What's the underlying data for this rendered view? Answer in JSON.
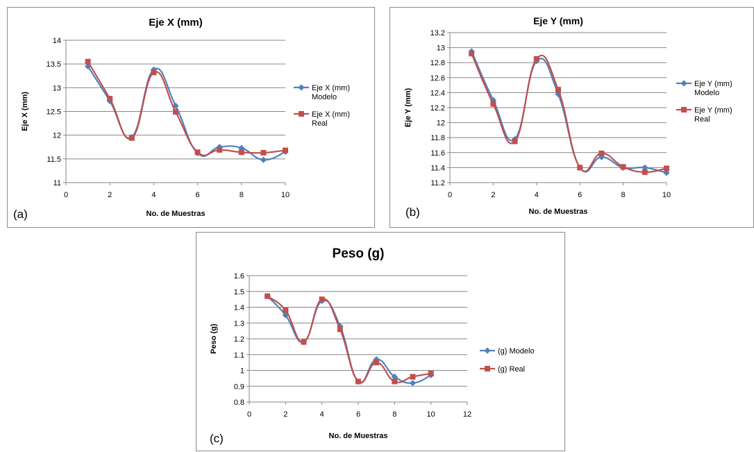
{
  "colors": {
    "modelo": "#4f81bd",
    "real": "#c0504d",
    "grid": "#868686",
    "axis": "#868686"
  },
  "chart_data": [
    {
      "type": "line",
      "panel_label": "(a)",
      "title": "Eje X (mm)",
      "xlabel": "No. de Muestras",
      "ylabel": "Eje X (mm)",
      "xlim": [
        0,
        10
      ],
      "ylim": [
        11,
        14
      ],
      "xticks": [
        "0",
        "2",
        "4",
        "6",
        "8",
        "10"
      ],
      "yticks": [
        "11",
        "11.5",
        "12",
        "12.5",
        "13",
        "13.5",
        "14"
      ],
      "xtick_values": [
        0,
        2,
        4,
        6,
        8,
        10
      ],
      "ytick_values": [
        11,
        11.5,
        12,
        12.5,
        13,
        13.5,
        14
      ],
      "grid": true,
      "legend_position": "right",
      "x": [
        1,
        2,
        3,
        4,
        5,
        6,
        7,
        8,
        9,
        10
      ],
      "series": [
        {
          "name": [
            "Eje X (mm)",
            "Modelo"
          ],
          "marker": "diamond",
          "color": "#4f81bd",
          "values": [
            13.45,
            12.72,
            11.96,
            13.38,
            12.62,
            11.62,
            11.75,
            11.73,
            11.48,
            11.65
          ]
        },
        {
          "name": [
            "Eje X (mm)",
            "Real"
          ],
          "marker": "square",
          "color": "#c0504d",
          "values": [
            13.55,
            12.77,
            11.94,
            13.32,
            12.49,
            11.64,
            11.69,
            11.64,
            11.63,
            11.68
          ]
        }
      ]
    },
    {
      "type": "line",
      "panel_label": "(b)",
      "title": "Eje Y (mm)",
      "xlabel": "No. de Muestras",
      "ylabel": "Eje Y (mm)",
      "xlim": [
        0,
        10
      ],
      "ylim": [
        11.2,
        13.2
      ],
      "xticks": [
        "0",
        "2",
        "4",
        "6",
        "8",
        "10"
      ],
      "yticks": [
        "11.2",
        "11.4",
        "11.6",
        "11.8",
        "12",
        "12.2",
        "12.4",
        "12.6",
        "12.8",
        "13",
        "13.2"
      ],
      "xtick_values": [
        0,
        2,
        4,
        6,
        8,
        10
      ],
      "ytick_values": [
        11.2,
        11.4,
        11.6,
        11.8,
        12,
        12.2,
        12.4,
        12.6,
        12.8,
        13,
        13.2
      ],
      "grid": true,
      "legend_position": "right",
      "x": [
        1,
        2,
        3,
        4,
        5,
        6,
        7,
        8,
        9,
        10
      ],
      "series": [
        {
          "name": [
            "Eje Y (mm)",
            "Modelo"
          ],
          "marker": "diamond",
          "color": "#4f81bd",
          "values": [
            12.95,
            12.3,
            11.78,
            12.82,
            12.38,
            11.4,
            11.54,
            11.4,
            11.4,
            11.33
          ]
        },
        {
          "name": [
            "Eje Y (mm)",
            "Real"
          ],
          "marker": "square",
          "color": "#c0504d",
          "values": [
            12.92,
            12.25,
            11.75,
            12.85,
            12.44,
            11.4,
            11.59,
            11.41,
            11.34,
            11.39
          ]
        }
      ]
    },
    {
      "type": "line",
      "panel_label": "(c)",
      "title": "Peso (g)",
      "xlabel": "No. de Muestras",
      "ylabel": "Peso (g)",
      "xlim": [
        0,
        12
      ],
      "ylim": [
        0.8,
        1.6
      ],
      "xticks": [
        "0",
        "2",
        "4",
        "6",
        "8",
        "10",
        "12"
      ],
      "yticks": [
        "0.8",
        "0.9",
        "1",
        "1.1",
        "1.2",
        "1.3",
        "1.4",
        "1.5",
        "1.6"
      ],
      "xtick_values": [
        0,
        2,
        4,
        6,
        8,
        10,
        12
      ],
      "ytick_values": [
        0.8,
        0.9,
        1,
        1.1,
        1.2,
        1.3,
        1.4,
        1.5,
        1.6
      ],
      "grid": true,
      "legend_position": "right",
      "x": [
        1,
        2,
        3,
        4,
        5,
        6,
        7,
        8,
        9,
        10
      ],
      "series": [
        {
          "name": [
            "(g) Modelo"
          ],
          "marker": "diamond",
          "color": "#4f81bd",
          "values": [
            1.47,
            1.35,
            1.18,
            1.44,
            1.28,
            0.93,
            1.07,
            0.96,
            0.92,
            0.97
          ]
        },
        {
          "name": [
            "(g) Real"
          ],
          "marker": "square",
          "color": "#c0504d",
          "values": [
            1.47,
            1.38,
            1.18,
            1.45,
            1.26,
            0.93,
            1.05,
            0.93,
            0.96,
            0.98
          ]
        }
      ]
    }
  ]
}
